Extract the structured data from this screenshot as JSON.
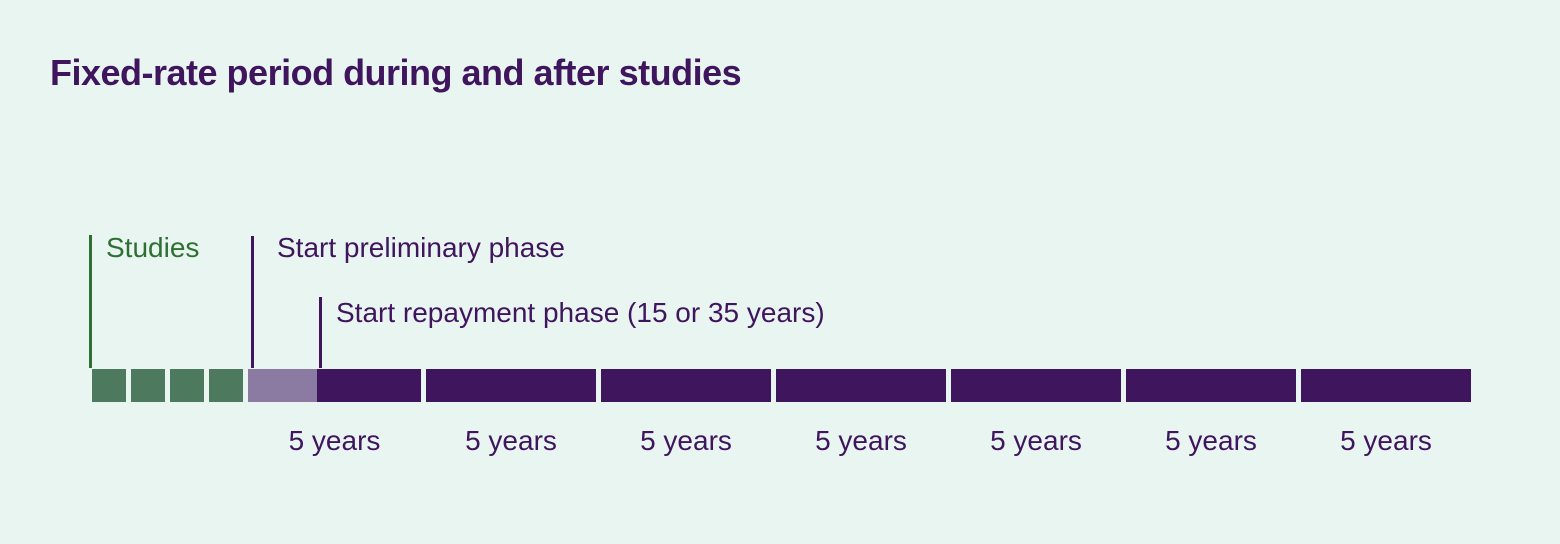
{
  "page": {
    "title": "Fixed-rate period during and after studies"
  },
  "annotations": {
    "studies": {
      "label": "Studies"
    },
    "preliminary": {
      "label": "Start preliminary phase"
    },
    "repayment": {
      "label": "Start repayment phase (15 or 35 years)"
    }
  },
  "timeline": {
    "studies_unit_count": 4,
    "repayment_block_count": 6,
    "period_labels": [
      "5 years",
      "5 years",
      "5 years",
      "5 years",
      "5 years",
      "5 years",
      "5 years"
    ],
    "segments": [
      {
        "name": "studies",
        "style": "green-squares",
        "units": 4
      },
      {
        "name": "preliminary-phase",
        "style": "mauve",
        "units": 2
      },
      {
        "name": "repayment-phase",
        "style": "dark-purple",
        "duration_note": "15 or 35 years"
      }
    ]
  },
  "colors": {
    "background": "#e9f5f0",
    "dark_purple": "#3f155e",
    "mauve": "#8b7aa1",
    "green_block": "#4d7a5f",
    "green_text": "#2e7033"
  }
}
